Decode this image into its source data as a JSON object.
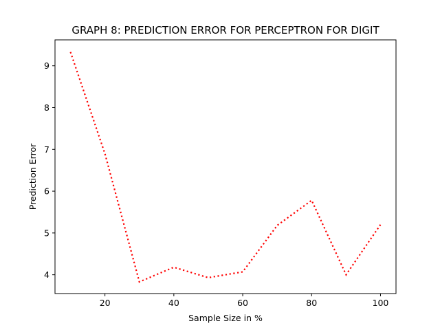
{
  "chart_data": {
    "type": "line",
    "title": "GRAPH 8: PREDICTION ERROR FOR PERCEPTRON FOR DIGIT",
    "xlabel": "Sample Size in %",
    "ylabel": "Prediction Error",
    "xlim": [
      5.5,
      104.5
    ],
    "ylim": [
      3.55,
      9.62
    ],
    "xticks": [
      20,
      40,
      60,
      80,
      100
    ],
    "yticks": [
      4,
      5,
      6,
      7,
      8,
      9
    ],
    "grid": false,
    "series": [
      {
        "color": "#ff0000",
        "linestyle": "dotted",
        "x": [
          10,
          20,
          30,
          40,
          50,
          60,
          70,
          80,
          90,
          100
        ],
        "values": [
          9.33,
          6.9,
          3.83,
          4.18,
          3.93,
          4.07,
          5.18,
          5.78,
          4.0,
          5.2
        ]
      }
    ]
  }
}
